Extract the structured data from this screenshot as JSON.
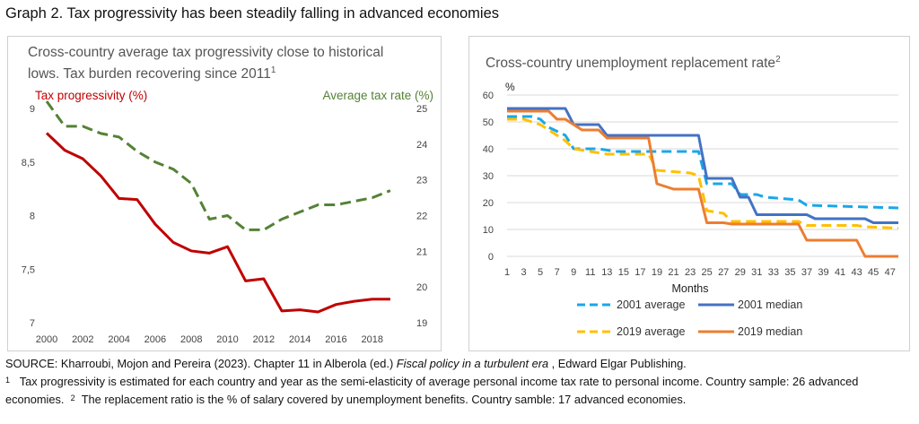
{
  "header": {
    "title": "Graph 2. Tax progressivity has been steadily falling in advanced economies"
  },
  "chart_data": [
    {
      "type": "line",
      "title": "Cross-country average tax progressivity close to historical lows. Tax burden recovering since 2011",
      "title_footnote": "1",
      "x": [
        2000,
        2001,
        2002,
        2003,
        2004,
        2005,
        2006,
        2007,
        2008,
        2009,
        2010,
        2011,
        2012,
        2013,
        2014,
        2015,
        2016,
        2017,
        2018,
        2019
      ],
      "x_ticks": [
        "2000",
        "2002",
        "2004",
        "2006",
        "2008",
        "2010",
        "2012",
        "2014",
        "2016",
        "2018"
      ],
      "ylim_left": [
        7,
        9
      ],
      "yticks_left": [
        "7",
        "7,5",
        "8",
        "8,5",
        "9"
      ],
      "ylim_right": [
        19,
        25
      ],
      "yticks_right": [
        "19",
        "20",
        "21",
        "22",
        "23",
        "24",
        "25"
      ],
      "grid": false,
      "legend": "top",
      "series": [
        {
          "name": "Tax progressivity (%)",
          "axis": "left",
          "style": "solid",
          "color": "#c00000",
          "values": [
            8.77,
            8.61,
            8.53,
            8.37,
            8.16,
            8.15,
            7.92,
            7.75,
            7.67,
            7.65,
            7.71,
            7.39,
            7.41,
            7.11,
            7.12,
            7.1,
            7.17,
            7.2,
            7.22,
            7.22
          ]
        },
        {
          "name": "Average tax rate (%)",
          "axis": "right",
          "style": "dashed",
          "color": "#548235",
          "values": [
            25.2,
            24.5,
            24.5,
            24.3,
            24.2,
            23.8,
            23.5,
            23.3,
            22.9,
            21.9,
            22.0,
            21.6,
            21.6,
            21.9,
            22.1,
            22.3,
            22.3,
            22.4,
            22.5,
            22.7
          ]
        }
      ]
    },
    {
      "type": "line",
      "title": "Cross-country unemployment replacement rate",
      "title_footnote": "2",
      "ylabel": "%",
      "xlabel": "Months",
      "ylim": [
        0,
        60
      ],
      "yticks": [
        "0",
        "10",
        "20",
        "30",
        "40",
        "50",
        "60"
      ],
      "x_ticks": [
        "1",
        "3",
        "5",
        "7",
        "9",
        "11",
        "13",
        "15",
        "17",
        "19",
        "21",
        "23",
        "25",
        "27",
        "29",
        "31",
        "33",
        "35",
        "37",
        "39",
        "41",
        "43",
        "45",
        "47"
      ],
      "grid": true,
      "legend": "bottom",
      "x": [
        1,
        48
      ],
      "series": [
        {
          "name": "2001 average",
          "style": "dashed",
          "color": "#1aa7e8",
          "points": [
            [
              1,
              52
            ],
            [
              4,
              52
            ],
            [
              5,
              51
            ],
            [
              6,
              48
            ],
            [
              8,
              45
            ],
            [
              9,
              40
            ],
            [
              12,
              40
            ],
            [
              14,
              39
            ],
            [
              16,
              39
            ],
            [
              18,
              39
            ],
            [
              22,
              39
            ],
            [
              24,
              39
            ],
            [
              25,
              27
            ],
            [
              28,
              27
            ],
            [
              29,
              23
            ],
            [
              31,
              23
            ],
            [
              32,
              22
            ],
            [
              36,
              21
            ],
            [
              37,
              19
            ],
            [
              48,
              18
            ]
          ]
        },
        {
          "name": "2001 median",
          "style": "solid",
          "color": "#4472c4",
          "points": [
            [
              1,
              55
            ],
            [
              8,
              55
            ],
            [
              9,
              49
            ],
            [
              12,
              49
            ],
            [
              13,
              45
            ],
            [
              24,
              45
            ],
            [
              25,
              29
            ],
            [
              28,
              29
            ],
            [
              29,
              22
            ],
            [
              30,
              22
            ],
            [
              31,
              15.5
            ],
            [
              37,
              15.5
            ],
            [
              38,
              14
            ],
            [
              44,
              14
            ],
            [
              45,
              12.5
            ],
            [
              48,
              12.5
            ]
          ]
        },
        {
          "name": "2019 average",
          "style": "dashed",
          "color": "#ffc000",
          "points": [
            [
              1,
              51
            ],
            [
              3,
              51
            ],
            [
              4,
              50
            ],
            [
              5,
              49
            ],
            [
              6,
              47
            ],
            [
              8,
              43
            ],
            [
              9,
              40
            ],
            [
              11,
              39
            ],
            [
              13,
              38
            ],
            [
              15,
              38
            ],
            [
              18,
              38
            ],
            [
              19,
              32
            ],
            [
              23,
              31
            ],
            [
              24,
              30
            ],
            [
              25,
              17
            ],
            [
              27,
              16
            ],
            [
              28,
              13
            ],
            [
              36,
              13
            ],
            [
              37,
              11.5
            ],
            [
              43,
              11.5
            ],
            [
              44,
              11
            ],
            [
              48,
              10.5
            ]
          ]
        },
        {
          "name": "2019 median",
          "style": "solid",
          "color": "#ed7d31",
          "points": [
            [
              1,
              54
            ],
            [
              6,
              54
            ],
            [
              7,
              51
            ],
            [
              8,
              51
            ],
            [
              9,
              49
            ],
            [
              10,
              47
            ],
            [
              12,
              47
            ],
            [
              13,
              44
            ],
            [
              18,
              44
            ],
            [
              19,
              27
            ],
            [
              20,
              26
            ],
            [
              21,
              25
            ],
            [
              24,
              25
            ],
            [
              25,
              12.5
            ],
            [
              27,
              12.5
            ],
            [
              28,
              12
            ],
            [
              36,
              12
            ],
            [
              37,
              6
            ],
            [
              43,
              6
            ],
            [
              44,
              0
            ],
            [
              48,
              0
            ]
          ]
        }
      ]
    }
  ],
  "footer": {
    "source_prefix": "SOURCE: Kharroubi, Mojon and Pereira (2023). Chapter 11 in Alberola (ed.) ",
    "source_italic": "Fiscal policy in a turbulent era",
    "source_suffix": " , Edward Elgar Publishing.",
    "note1_marker": "1",
    "note1_text": "Tax progressivity is estimated for each country and year as the semi-elasticity of average personal income tax rate to personal income. Country sample: 26 advanced economies.",
    "note2_marker": "2",
    "note2_text": "The replacement ratio is the % of salary covered by unemployment benefits. Country samble: 17 advanced economies."
  }
}
